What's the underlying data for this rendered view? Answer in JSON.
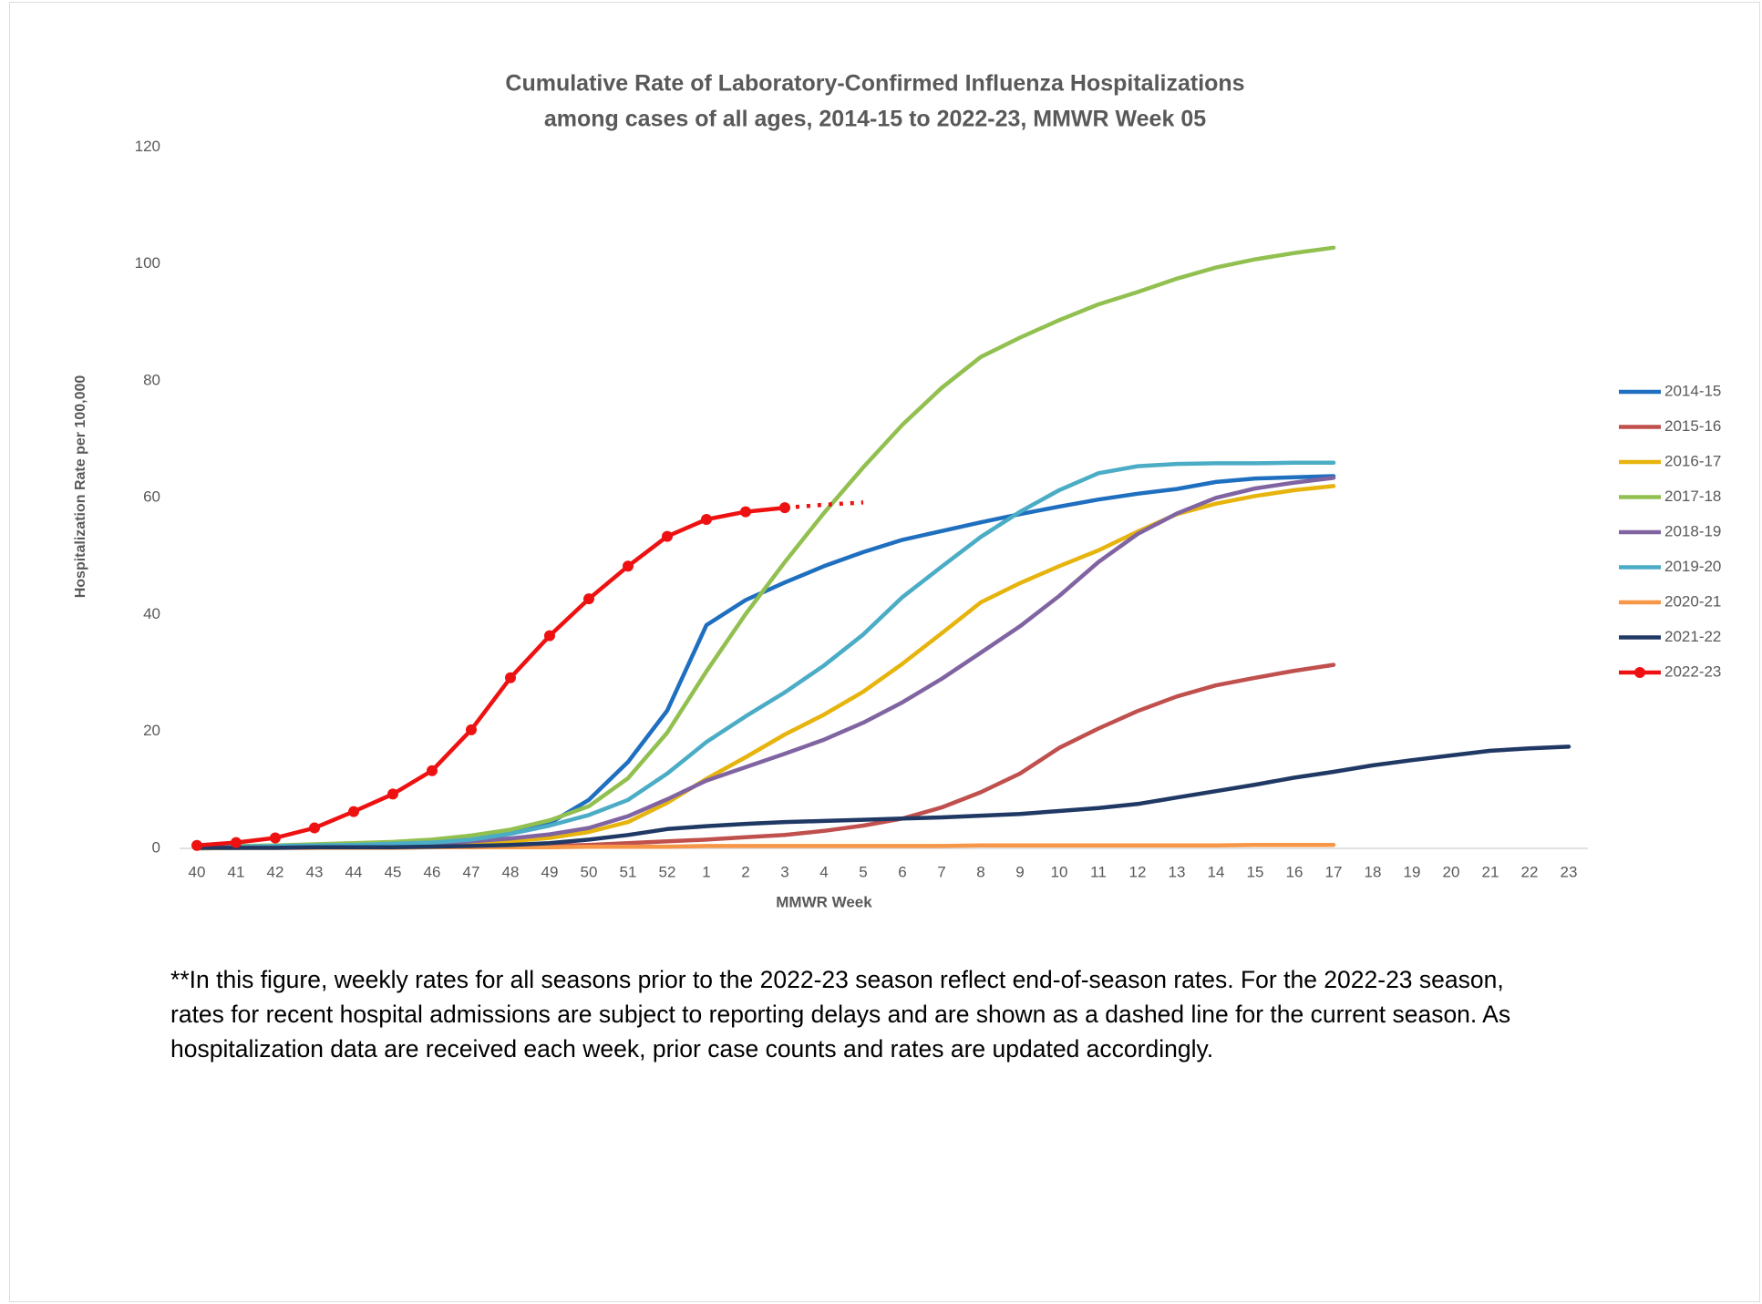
{
  "chart_data": {
    "type": "line",
    "title": [
      "Cumulative Rate of Laboratory-Confirmed Influenza Hospitalizations",
      "among cases of all ages, 2014-15 to 2022-23, MMWR  Week 05"
    ],
    "xlabel": "MMWR Week",
    "ylabel": "Hospitalization  Rate per 100,000",
    "categories": [
      "40",
      "41",
      "42",
      "43",
      "44",
      "45",
      "46",
      "47",
      "48",
      "49",
      "50",
      "51",
      "52",
      "1",
      "2",
      "3",
      "4",
      "5",
      "6",
      "7",
      "8",
      "9",
      "10",
      "11",
      "12",
      "13",
      "14",
      "15",
      "16",
      "17",
      "18",
      "19",
      "20",
      "21",
      "22",
      "23"
    ],
    "ylim": [
      0,
      120
    ],
    "yticks": [
      0,
      20,
      40,
      60,
      80,
      100,
      120
    ],
    "grid": false,
    "legend": "right",
    "series": [
      {
        "name": "2014-15",
        "color": "#1f6fc0",
        "values": [
          0,
          0.1,
          0.2,
          0.3,
          0.4,
          0.6,
          0.9,
          1.5,
          2.5,
          4.3,
          8.3,
          14.8,
          23.6,
          38.2,
          42.5,
          45.5,
          48.3,
          50.7,
          52.8,
          54.3,
          55.8,
          57.2,
          58.5,
          59.7,
          60.7,
          61.5,
          62.7,
          63.3,
          63.5,
          63.7,
          null,
          null,
          null,
          null,
          null,
          null
        ]
      },
      {
        "name": "2015-16",
        "color": "#c0504d",
        "values": [
          0.1,
          0.1,
          0.1,
          0.1,
          0.2,
          0.2,
          0.2,
          0.3,
          0.3,
          0.4,
          0.6,
          0.9,
          1.2,
          1.5,
          1.9,
          2.3,
          3.0,
          3.9,
          5.1,
          7.0,
          9.6,
          12.8,
          17.2,
          20.5,
          23.5,
          26.0,
          27.9,
          29.2,
          30.4,
          31.4,
          null,
          null,
          null,
          null,
          null,
          null
        ]
      },
      {
        "name": "2016-17",
        "color": "#e6b40c",
        "values": [
          0,
          0.1,
          0.1,
          0.2,
          0.3,
          0.4,
          0.5,
          0.8,
          1.2,
          1.8,
          2.8,
          4.5,
          7.8,
          11.9,
          15.6,
          19.5,
          22.9,
          26.8,
          31.6,
          36.8,
          42.1,
          45.4,
          48.3,
          51.0,
          54.2,
          57.2,
          59.0,
          60.3,
          61.3,
          62.0,
          null,
          null,
          null,
          null,
          null,
          null
        ]
      },
      {
        "name": "2017-18",
        "color": "#92c050",
        "values": [
          0.3,
          0.4,
          0.5,
          0.7,
          0.9,
          1.1,
          1.5,
          2.2,
          3.2,
          4.8,
          7.2,
          12.0,
          19.8,
          30.3,
          40.1,
          49.0,
          57.4,
          65.2,
          72.5,
          78.8,
          84.1,
          87.4,
          90.4,
          93.1,
          95.2,
          97.5,
          99.4,
          100.8,
          101.9,
          102.8,
          null,
          null,
          null,
          null,
          null,
          null
        ]
      },
      {
        "name": "2018-19",
        "color": "#8064a2",
        "values": [
          0.1,
          0.1,
          0.2,
          0.3,
          0.4,
          0.5,
          0.8,
          1.2,
          1.7,
          2.4,
          3.5,
          5.5,
          8.4,
          11.6,
          13.9,
          16.2,
          18.6,
          21.5,
          25.0,
          29.0,
          33.5,
          38.0,
          43.2,
          49.0,
          53.8,
          57.3,
          60.0,
          61.6,
          62.6,
          63.4,
          null,
          null,
          null,
          null,
          null,
          null
        ]
      },
      {
        "name": "2019-20",
        "color": "#4bacc6",
        "values": [
          0.2,
          0.3,
          0.4,
          0.5,
          0.6,
          0.8,
          1.0,
          1.5,
          2.5,
          3.9,
          5.7,
          8.3,
          12.8,
          18.2,
          22.6,
          26.7,
          31.3,
          36.6,
          43.0,
          48.2,
          53.3,
          57.6,
          61.3,
          64.2,
          65.4,
          65.8,
          65.9,
          65.9,
          66.0,
          66.0,
          null,
          null,
          null,
          null,
          null,
          null
        ]
      },
      {
        "name": "2020-21",
        "color": "#f79646",
        "values": [
          0.1,
          0.1,
          0.1,
          0.1,
          0.1,
          0.1,
          0.2,
          0.2,
          0.2,
          0.2,
          0.3,
          0.3,
          0.3,
          0.4,
          0.4,
          0.4,
          0.4,
          0.4,
          0.4,
          0.4,
          0.5,
          0.5,
          0.5,
          0.5,
          0.5,
          0.5,
          0.5,
          0.6,
          0.6,
          0.6,
          null,
          null,
          null,
          null,
          null,
          null
        ]
      },
      {
        "name": "2021-22",
        "color": "#1f3864",
        "values": [
          0.1,
          0.1,
          0.1,
          0.2,
          0.2,
          0.2,
          0.3,
          0.4,
          0.6,
          0.9,
          1.5,
          2.3,
          3.3,
          3.8,
          4.2,
          4.5,
          4.7,
          4.9,
          5.1,
          5.3,
          5.6,
          5.9,
          6.4,
          6.9,
          7.6,
          8.7,
          9.8,
          10.9,
          12.1,
          13.1,
          14.2,
          15.1,
          15.9,
          16.7,
          17.1,
          17.4
        ]
      },
      {
        "name": "2022-23",
        "color": "#ee1111",
        "markers": true,
        "dashed_from": 15,
        "values": [
          0.5,
          1.0,
          1.8,
          3.5,
          6.3,
          9.3,
          13.3,
          20.3,
          29.2,
          36.4,
          42.7,
          48.3,
          53.4,
          56.3,
          57.6,
          58.3,
          58.8,
          59.2,
          null,
          null,
          null,
          null,
          null,
          null,
          null,
          null,
          null,
          null,
          null,
          null,
          null,
          null,
          null,
          null,
          null,
          null
        ]
      }
    ]
  },
  "note": [
    "**In this figure, weekly rates for all seasons prior to the 2022-23 season reflect end-of-season rates. For the 2022-23 season,",
    "rates for recent hospital admissions are subject to reporting delays and are shown as a dashed line for the current season. As",
    "hospitalization data are received each week, prior case counts and rates are updated accordingly."
  ]
}
